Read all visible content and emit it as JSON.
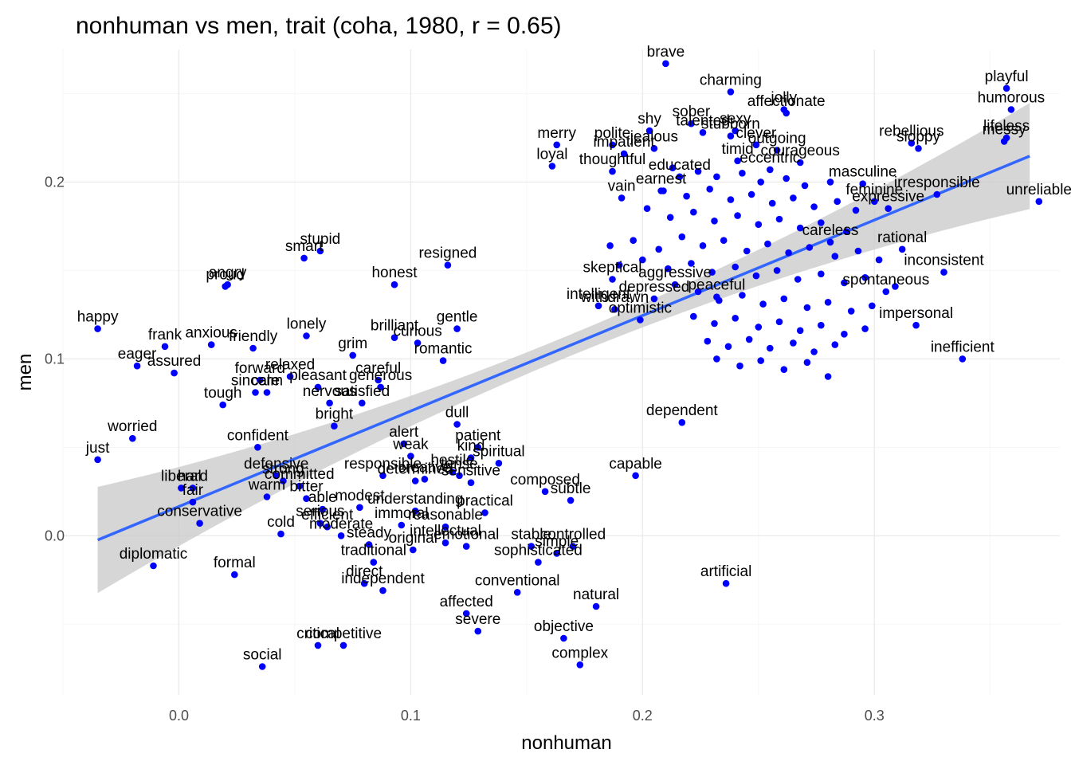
{
  "chart_data": {
    "type": "scatter",
    "title": "nonhuman vs men, trait (coha, 1980, r = 0.65)",
    "xlabel": "nonhuman",
    "ylabel": "men",
    "xlim": [
      -0.05,
      0.38
    ],
    "ylim": [
      -0.09,
      0.275
    ],
    "x_ticks": [
      0.0,
      0.1,
      0.2,
      0.3
    ],
    "x_tick_labels": [
      "0.0",
      "0.1",
      "0.2",
      "0.3"
    ],
    "y_ticks": [
      0.0,
      0.1,
      0.2
    ],
    "y_tick_labels": [
      "0.0",
      "0.1",
      "0.2"
    ],
    "grid": true,
    "point_color": "#0000ff",
    "line_color": "#3366ff",
    "band_color": "#c8c8c8",
    "trend": {
      "intercept": 0.0165,
      "slope": 0.54,
      "x_range": [
        -0.035,
        0.367
      ],
      "se_at_mean": 0.006,
      "se_at_ends": 0.03
    },
    "points": [
      {
        "label": "brave",
        "x": 0.21,
        "y": 0.267
      },
      {
        "label": "playful",
        "x": 0.357,
        "y": 0.253
      },
      {
        "label": "humorous",
        "x": 0.359,
        "y": 0.241
      },
      {
        "label": "charming",
        "x": 0.238,
        "y": 0.251
      },
      {
        "label": "jolly",
        "x": 0.261,
        "y": 0.241
      },
      {
        "label": "affectionate",
        "x": 0.262,
        "y": 0.239
      },
      {
        "label": "lifeless",
        "x": 0.357,
        "y": 0.225
      },
      {
        "label": "messy",
        "x": 0.356,
        "y": 0.223
      },
      {
        "label": "rebellious",
        "x": 0.316,
        "y": 0.222
      },
      {
        "label": "sloppy",
        "x": 0.319,
        "y": 0.219
      },
      {
        "label": "merry",
        "x": 0.163,
        "y": 0.221
      },
      {
        "label": "loyal",
        "x": 0.161,
        "y": 0.209
      },
      {
        "label": "shy",
        "x": 0.203,
        "y": 0.229
      },
      {
        "label": "sober",
        "x": 0.221,
        "y": 0.233
      },
      {
        "label": "talented",
        "x": 0.226,
        "y": 0.228
      },
      {
        "label": "sexy",
        "x": 0.24,
        "y": 0.229
      },
      {
        "label": "polite",
        "x": 0.187,
        "y": 0.221
      },
      {
        "label": "impatient",
        "x": 0.192,
        "y": 0.216
      },
      {
        "label": "jealous",
        "x": 0.205,
        "y": 0.219
      },
      {
        "label": "thoughtful",
        "x": 0.187,
        "y": 0.206
      },
      {
        "label": "stubborn",
        "x": 0.238,
        "y": 0.226
      },
      {
        "label": "clever",
        "x": 0.249,
        "y": 0.221
      },
      {
        "label": "timid",
        "x": 0.241,
        "y": 0.212
      },
      {
        "label": "outgoing",
        "x": 0.258,
        "y": 0.218
      },
      {
        "label": "courageous",
        "x": 0.268,
        "y": 0.211
      },
      {
        "label": "eccentric",
        "x": 0.255,
        "y": 0.207
      },
      {
        "label": "educated",
        "x": 0.216,
        "y": 0.203
      },
      {
        "label": "vain",
        "x": 0.191,
        "y": 0.191
      },
      {
        "label": "earnest",
        "x": 0.208,
        "y": 0.195
      },
      {
        "label": "masculine",
        "x": 0.295,
        "y": 0.199
      },
      {
        "label": "irresponsible",
        "x": 0.327,
        "y": 0.193
      },
      {
        "label": "unreliable",
        "x": 0.371,
        "y": 0.189
      },
      {
        "label": "feminine",
        "x": 0.3,
        "y": 0.189
      },
      {
        "label": "expressive",
        "x": 0.306,
        "y": 0.185
      },
      {
        "label": "careless",
        "x": 0.281,
        "y": 0.166
      },
      {
        "label": "rational",
        "x": 0.312,
        "y": 0.162
      },
      {
        "label": "inconsistent",
        "x": 0.33,
        "y": 0.149
      },
      {
        "label": "spontaneous",
        "x": 0.305,
        "y": 0.138
      },
      {
        "label": "impersonal",
        "x": 0.318,
        "y": 0.119
      },
      {
        "label": "inefficient",
        "x": 0.338,
        "y": 0.1
      },
      {
        "label": "stupid",
        "x": 0.061,
        "y": 0.161
      },
      {
        "label": "smart",
        "x": 0.054,
        "y": 0.157
      },
      {
        "label": "resigned",
        "x": 0.116,
        "y": 0.153
      },
      {
        "label": "angry",
        "x": 0.021,
        "y": 0.142
      },
      {
        "label": "proud",
        "x": 0.02,
        "y": 0.141
      },
      {
        "label": "honest",
        "x": 0.093,
        "y": 0.142
      },
      {
        "label": "skeptical",
        "x": 0.187,
        "y": 0.145
      },
      {
        "label": "depressed",
        "x": 0.205,
        "y": 0.134
      },
      {
        "label": "intelligent",
        "x": 0.181,
        "y": 0.13
      },
      {
        "label": "withdrawn",
        "x": 0.188,
        "y": 0.128
      },
      {
        "label": "optimistic",
        "x": 0.199,
        "y": 0.122
      },
      {
        "label": "aggressive",
        "x": 0.214,
        "y": 0.142
      },
      {
        "label": "peaceful",
        "x": 0.232,
        "y": 0.135
      },
      {
        "label": "happy",
        "x": -0.035,
        "y": 0.117
      },
      {
        "label": "frank",
        "x": -0.006,
        "y": 0.107
      },
      {
        "label": "anxious",
        "x": 0.014,
        "y": 0.108
      },
      {
        "label": "friendly",
        "x": 0.032,
        "y": 0.106
      },
      {
        "label": "lonely",
        "x": 0.055,
        "y": 0.113
      },
      {
        "label": "brilliant",
        "x": 0.093,
        "y": 0.112
      },
      {
        "label": "gentle",
        "x": 0.12,
        "y": 0.117
      },
      {
        "label": "curious",
        "x": 0.103,
        "y": 0.109
      },
      {
        "label": "romantic",
        "x": 0.114,
        "y": 0.099
      },
      {
        "label": "grim",
        "x": 0.075,
        "y": 0.102
      },
      {
        "label": "eager",
        "x": -0.018,
        "y": 0.096
      },
      {
        "label": "assured",
        "x": -0.002,
        "y": 0.092
      },
      {
        "label": "forward",
        "x": 0.035,
        "y": 0.088
      },
      {
        "label": "relaxed",
        "x": 0.048,
        "y": 0.09
      },
      {
        "label": "pleasant",
        "x": 0.06,
        "y": 0.084
      },
      {
        "label": "careful",
        "x": 0.086,
        "y": 0.088
      },
      {
        "label": "generous",
        "x": 0.087,
        "y": 0.084
      },
      {
        "label": "sincere",
        "x": 0.033,
        "y": 0.081
      },
      {
        "label": "calm",
        "x": 0.038,
        "y": 0.081
      },
      {
        "label": "tough",
        "x": 0.019,
        "y": 0.074
      },
      {
        "label": "nervous",
        "x": 0.065,
        "y": 0.075
      },
      {
        "label": "satisfied",
        "x": 0.079,
        "y": 0.075
      },
      {
        "label": "bright",
        "x": 0.067,
        "y": 0.062
      },
      {
        "label": "worried",
        "x": -0.02,
        "y": 0.055
      },
      {
        "label": "just",
        "x": -0.035,
        "y": 0.043
      },
      {
        "label": "confident",
        "x": 0.034,
        "y": 0.05
      },
      {
        "label": "dull",
        "x": 0.12,
        "y": 0.063
      },
      {
        "label": "alert",
        "x": 0.097,
        "y": 0.052
      },
      {
        "label": "patient",
        "x": 0.129,
        "y": 0.05
      },
      {
        "label": "weak",
        "x": 0.1,
        "y": 0.045
      },
      {
        "label": "kind",
        "x": 0.126,
        "y": 0.044
      },
      {
        "label": "spiritual",
        "x": 0.138,
        "y": 0.041
      },
      {
        "label": "hostile",
        "x": 0.118,
        "y": 0.036
      },
      {
        "label": "responsible",
        "x": 0.088,
        "y": 0.034
      },
      {
        "label": "creative",
        "x": 0.106,
        "y": 0.032
      },
      {
        "label": "tense",
        "x": 0.121,
        "y": 0.034
      },
      {
        "label": "sensitive",
        "x": 0.126,
        "y": 0.03
      },
      {
        "label": "dependent",
        "x": 0.217,
        "y": 0.064
      },
      {
        "label": "capable",
        "x": 0.197,
        "y": 0.034
      },
      {
        "label": "composed",
        "x": 0.158,
        "y": 0.025
      },
      {
        "label": "subtle",
        "x": 0.169,
        "y": 0.02
      },
      {
        "label": "defensive",
        "x": 0.042,
        "y": 0.034
      },
      {
        "label": "liberal",
        "x": 0.001,
        "y": 0.027
      },
      {
        "label": "hard",
        "x": 0.006,
        "y": 0.027
      },
      {
        "label": "strong",
        "x": 0.045,
        "y": 0.031
      },
      {
        "label": "committed",
        "x": 0.052,
        "y": 0.028
      },
      {
        "label": "warm",
        "x": 0.038,
        "y": 0.022
      },
      {
        "label": "bitter",
        "x": 0.055,
        "y": 0.021
      },
      {
        "label": "fair",
        "x": 0.006,
        "y": 0.019
      },
      {
        "label": "able",
        "x": 0.062,
        "y": 0.015
      },
      {
        "label": "modest",
        "x": 0.078,
        "y": 0.016
      },
      {
        "label": "understanding",
        "x": 0.102,
        "y": 0.014
      },
      {
        "label": "determined",
        "x": 0.102,
        "y": 0.031
      },
      {
        "label": "practical",
        "x": 0.132,
        "y": 0.013
      },
      {
        "label": "conservative",
        "x": 0.009,
        "y": 0.007
      },
      {
        "label": "serious",
        "x": 0.061,
        "y": 0.007
      },
      {
        "label": "cold",
        "x": 0.044,
        "y": 0.001
      },
      {
        "label": "efficient",
        "x": 0.064,
        "y": 0.005
      },
      {
        "label": "immoral",
        "x": 0.096,
        "y": 0.006
      },
      {
        "label": "reasonable",
        "x": 0.115,
        "y": 0.005
      },
      {
        "label": "moderate",
        "x": 0.07,
        "y": 0.0
      },
      {
        "label": "steady",
        "x": 0.082,
        "y": -0.005
      },
      {
        "label": "original",
        "x": 0.101,
        "y": -0.008
      },
      {
        "label": "intellectual",
        "x": 0.115,
        "y": -0.004
      },
      {
        "label": "emotional",
        "x": 0.124,
        "y": -0.006
      },
      {
        "label": "stable",
        "x": 0.152,
        "y": -0.006
      },
      {
        "label": "controlled",
        "x": 0.17,
        "y": -0.006
      },
      {
        "label": "simple",
        "x": 0.163,
        "y": -0.01
      },
      {
        "label": "sophisticated",
        "x": 0.155,
        "y": -0.015
      },
      {
        "label": "diplomatic",
        "x": -0.011,
        "y": -0.017
      },
      {
        "label": "formal",
        "x": 0.024,
        "y": -0.022
      },
      {
        "label": "traditional",
        "x": 0.084,
        "y": -0.015
      },
      {
        "label": "direct",
        "x": 0.08,
        "y": -0.027
      },
      {
        "label": "independent",
        "x": 0.088,
        "y": -0.031
      },
      {
        "label": "conventional",
        "x": 0.146,
        "y": -0.032
      },
      {
        "label": "artificial",
        "x": 0.236,
        "y": -0.027
      },
      {
        "label": "natural",
        "x": 0.18,
        "y": -0.04
      },
      {
        "label": "affected",
        "x": 0.124,
        "y": -0.044
      },
      {
        "label": "severe",
        "x": 0.129,
        "y": -0.054
      },
      {
        "label": "objective",
        "x": 0.166,
        "y": -0.058
      },
      {
        "label": "complex",
        "x": 0.173,
        "y": -0.073
      },
      {
        "label": "critical",
        "x": 0.06,
        "y": -0.062
      },
      {
        "label": "competitive",
        "x": 0.071,
        "y": -0.062
      },
      {
        "label": "social",
        "x": 0.036,
        "y": -0.074
      },
      {
        "label": "",
        "x": 0.213,
        "y": 0.208
      },
      {
        "label": "",
        "x": 0.224,
        "y": 0.206
      },
      {
        "label": "",
        "x": 0.232,
        "y": 0.203
      },
      {
        "label": "",
        "x": 0.243,
        "y": 0.205
      },
      {
        "label": "",
        "x": 0.251,
        "y": 0.2
      },
      {
        "label": "",
        "x": 0.262,
        "y": 0.202
      },
      {
        "label": "",
        "x": 0.27,
        "y": 0.198
      },
      {
        "label": "",
        "x": 0.281,
        "y": 0.2
      },
      {
        "label": "",
        "x": 0.209,
        "y": 0.195
      },
      {
        "label": "",
        "x": 0.219,
        "y": 0.192
      },
      {
        "label": "",
        "x": 0.229,
        "y": 0.196
      },
      {
        "label": "",
        "x": 0.238,
        "y": 0.19
      },
      {
        "label": "",
        "x": 0.247,
        "y": 0.193
      },
      {
        "label": "",
        "x": 0.256,
        "y": 0.188
      },
      {
        "label": "",
        "x": 0.265,
        "y": 0.191
      },
      {
        "label": "",
        "x": 0.274,
        "y": 0.186
      },
      {
        "label": "",
        "x": 0.284,
        "y": 0.189
      },
      {
        "label": "",
        "x": 0.292,
        "y": 0.184
      },
      {
        "label": "",
        "x": 0.202,
        "y": 0.185
      },
      {
        "label": "",
        "x": 0.212,
        "y": 0.18
      },
      {
        "label": "",
        "x": 0.222,
        "y": 0.183
      },
      {
        "label": "",
        "x": 0.231,
        "y": 0.178
      },
      {
        "label": "",
        "x": 0.241,
        "y": 0.181
      },
      {
        "label": "",
        "x": 0.25,
        "y": 0.176
      },
      {
        "label": "",
        "x": 0.259,
        "y": 0.179
      },
      {
        "label": "",
        "x": 0.268,
        "y": 0.174
      },
      {
        "label": "",
        "x": 0.277,
        "y": 0.177
      },
      {
        "label": "",
        "x": 0.288,
        "y": 0.172
      },
      {
        "label": "",
        "x": 0.186,
        "y": 0.164
      },
      {
        "label": "",
        "x": 0.196,
        "y": 0.167
      },
      {
        "label": "",
        "x": 0.207,
        "y": 0.162
      },
      {
        "label": "",
        "x": 0.217,
        "y": 0.169
      },
      {
        "label": "",
        "x": 0.226,
        "y": 0.164
      },
      {
        "label": "",
        "x": 0.235,
        "y": 0.167
      },
      {
        "label": "",
        "x": 0.245,
        "y": 0.161
      },
      {
        "label": "",
        "x": 0.254,
        "y": 0.165
      },
      {
        "label": "",
        "x": 0.263,
        "y": 0.16
      },
      {
        "label": "",
        "x": 0.272,
        "y": 0.163
      },
      {
        "label": "",
        "x": 0.283,
        "y": 0.158
      },
      {
        "label": "",
        "x": 0.293,
        "y": 0.161
      },
      {
        "label": "",
        "x": 0.302,
        "y": 0.156
      },
      {
        "label": "",
        "x": 0.19,
        "y": 0.153
      },
      {
        "label": "",
        "x": 0.2,
        "y": 0.156
      },
      {
        "label": "",
        "x": 0.211,
        "y": 0.151
      },
      {
        "label": "",
        "x": 0.221,
        "y": 0.154
      },
      {
        "label": "",
        "x": 0.23,
        "y": 0.149
      },
      {
        "label": "",
        "x": 0.24,
        "y": 0.152
      },
      {
        "label": "",
        "x": 0.249,
        "y": 0.147
      },
      {
        "label": "",
        "x": 0.258,
        "y": 0.15
      },
      {
        "label": "",
        "x": 0.267,
        "y": 0.145
      },
      {
        "label": "",
        "x": 0.277,
        "y": 0.148
      },
      {
        "label": "",
        "x": 0.287,
        "y": 0.143
      },
      {
        "label": "",
        "x": 0.296,
        "y": 0.146
      },
      {
        "label": "",
        "x": 0.309,
        "y": 0.141
      },
      {
        "label": "",
        "x": 0.224,
        "y": 0.138
      },
      {
        "label": "",
        "x": 0.233,
        "y": 0.133
      },
      {
        "label": "",
        "x": 0.243,
        "y": 0.136
      },
      {
        "label": "",
        "x": 0.252,
        "y": 0.131
      },
      {
        "label": "",
        "x": 0.261,
        "y": 0.134
      },
      {
        "label": "",
        "x": 0.271,
        "y": 0.129
      },
      {
        "label": "",
        "x": 0.28,
        "y": 0.132
      },
      {
        "label": "",
        "x": 0.29,
        "y": 0.127
      },
      {
        "label": "",
        "x": 0.299,
        "y": 0.13
      },
      {
        "label": "",
        "x": 0.222,
        "y": 0.124
      },
      {
        "label": "",
        "x": 0.231,
        "y": 0.12
      },
      {
        "label": "",
        "x": 0.24,
        "y": 0.123
      },
      {
        "label": "",
        "x": 0.25,
        "y": 0.118
      },
      {
        "label": "",
        "x": 0.259,
        "y": 0.121
      },
      {
        "label": "",
        "x": 0.268,
        "y": 0.116
      },
      {
        "label": "",
        "x": 0.277,
        "y": 0.119
      },
      {
        "label": "",
        "x": 0.287,
        "y": 0.114
      },
      {
        "label": "",
        "x": 0.296,
        "y": 0.117
      },
      {
        "label": "",
        "x": 0.228,
        "y": 0.11
      },
      {
        "label": "",
        "x": 0.237,
        "y": 0.107
      },
      {
        "label": "",
        "x": 0.246,
        "y": 0.111
      },
      {
        "label": "",
        "x": 0.255,
        "y": 0.106
      },
      {
        "label": "",
        "x": 0.265,
        "y": 0.109
      },
      {
        "label": "",
        "x": 0.274,
        "y": 0.104
      },
      {
        "label": "",
        "x": 0.283,
        "y": 0.108
      },
      {
        "label": "",
        "x": 0.232,
        "y": 0.1
      },
      {
        "label": "",
        "x": 0.242,
        "y": 0.096
      },
      {
        "label": "",
        "x": 0.251,
        "y": 0.099
      },
      {
        "label": "",
        "x": 0.261,
        "y": 0.094
      },
      {
        "label": "",
        "x": 0.271,
        "y": 0.098
      },
      {
        "label": "",
        "x": 0.28,
        "y": 0.09
      }
    ]
  }
}
